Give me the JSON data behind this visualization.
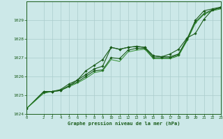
{
  "title": "Graphe pression niveau de la mer (hPa)",
  "bg_color": "#cce8e8",
  "grid_color": "#aacccc",
  "line_color_main": "#1a5c1a",
  "line_color_light": "#2d8c2d",
  "xlim": [
    0,
    23
  ],
  "ylim": [
    1024,
    1030
  ],
  "xticks": [
    0,
    2,
    3,
    4,
    5,
    6,
    7,
    8,
    9,
    10,
    11,
    12,
    13,
    14,
    15,
    16,
    17,
    18,
    19,
    20,
    21,
    22,
    23
  ],
  "yticks": [
    1024,
    1025,
    1026,
    1027,
    1028,
    1029
  ],
  "series1_x": [
    0,
    2,
    3,
    4,
    5,
    6,
    7,
    8,
    9,
    10,
    11,
    12,
    13,
    14,
    15,
    16,
    17,
    18,
    19,
    20,
    21,
    22,
    23
  ],
  "series1_y": [
    1024.3,
    1025.2,
    1025.2,
    1025.3,
    1025.6,
    1025.8,
    1026.1,
    1026.4,
    1026.55,
    1027.55,
    1027.45,
    1027.55,
    1027.6,
    1027.55,
    1027.1,
    1027.05,
    1027.05,
    1027.2,
    1028.0,
    1029.0,
    1029.5,
    1029.6,
    1029.7
  ],
  "series2_x": [
    0,
    2,
    3,
    4,
    5,
    6,
    7,
    8,
    9,
    10,
    11,
    12,
    13,
    14,
    15,
    16,
    17,
    18,
    19,
    20,
    21,
    22,
    23
  ],
  "series2_y": [
    1024.3,
    1025.15,
    1025.2,
    1025.25,
    1025.5,
    1025.7,
    1026.0,
    1026.3,
    1026.35,
    1027.0,
    1026.95,
    1027.4,
    1027.5,
    1027.5,
    1027.0,
    1027.0,
    1027.0,
    1027.15,
    1027.95,
    1028.9,
    1029.35,
    1029.55,
    1029.65
  ],
  "series3_x": [
    0,
    2,
    3,
    4,
    5,
    6,
    7,
    8,
    9,
    10,
    11,
    12,
    13,
    14,
    15,
    16,
    17,
    18,
    19,
    20,
    21,
    22,
    23
  ],
  "series3_y": [
    1024.3,
    1025.1,
    1025.2,
    1025.25,
    1025.45,
    1025.65,
    1025.9,
    1026.2,
    1026.3,
    1026.9,
    1026.8,
    1027.3,
    1027.4,
    1027.45,
    1026.95,
    1026.95,
    1026.95,
    1027.1,
    1027.9,
    1028.85,
    1029.3,
    1029.5,
    1029.6
  ],
  "series4_x": [
    2,
    3,
    4,
    5,
    6,
    7,
    8,
    9,
    10,
    11,
    12,
    13,
    14,
    15,
    16,
    17,
    18,
    19,
    20,
    21,
    22,
    23
  ],
  "series4_y": [
    1025.2,
    1025.2,
    1025.25,
    1025.5,
    1025.8,
    1026.3,
    1026.6,
    1026.9,
    1027.55,
    1027.45,
    1027.55,
    1027.6,
    1027.55,
    1027.1,
    1027.05,
    1027.2,
    1027.45,
    1028.05,
    1028.3,
    1029.05,
    1029.55,
    1029.65
  ]
}
